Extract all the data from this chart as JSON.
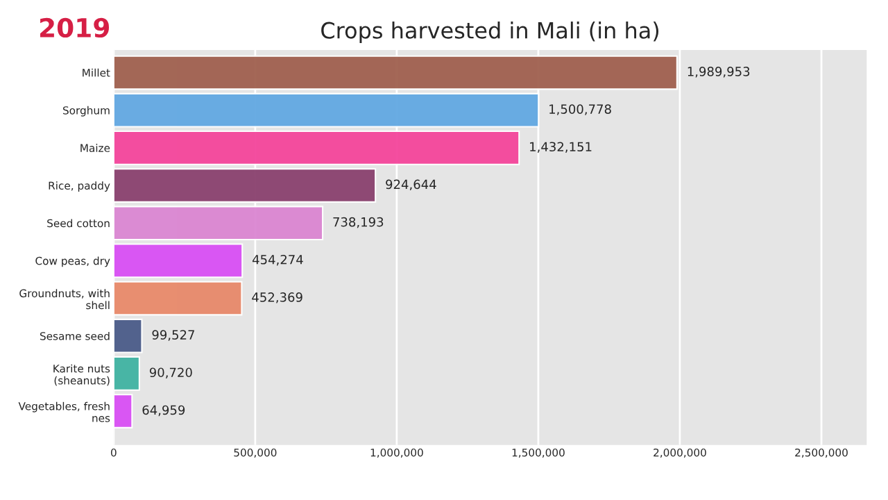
{
  "chart_data": {
    "type": "bar",
    "orientation": "horizontal",
    "title": "Crops harvested in Mali (in ha)",
    "annotations": [
      "2019"
    ],
    "categories": [
      "Millet",
      "Sorghum",
      "Maize",
      "Rice, paddy",
      "Seed cotton",
      "Cow peas, dry",
      "Groundnuts, with\nshell",
      "Sesame seed",
      "Karite nuts\n(sheanuts)",
      "Vegetables, fresh\nnes"
    ],
    "values": [
      1989953,
      1500778,
      1432151,
      924644,
      738193,
      454274,
      452369,
      99527,
      90720,
      64959
    ],
    "value_labels": [
      "1,989,953",
      "1,500,778",
      "1,432,151",
      "924,644",
      "738,193",
      "454,274",
      "452,369",
      "99,527",
      "90,720",
      "64,959"
    ],
    "colors": [
      "#a0604f",
      "#62a8e2",
      "#f4459b",
      "#8a416e",
      "#db86d2",
      "#d94ff4",
      "#e8896a",
      "#4a5b88",
      "#40b3a2",
      "#d94ff4"
    ],
    "xlim": [
      0,
      2660000
    ],
    "xticks": [
      0,
      {
        "value": 500000,
        "label": "500,000"
      },
      {
        "value": 1000000,
        "label": "1,000,000"
      },
      {
        "value": 1500000,
        "label": "1,500,000"
      },
      {
        "value": 2000000,
        "label": "2,000,000"
      },
      {
        "value": 2500000,
        "label": "2,500,000"
      }
    ],
    "grid": "x"
  }
}
